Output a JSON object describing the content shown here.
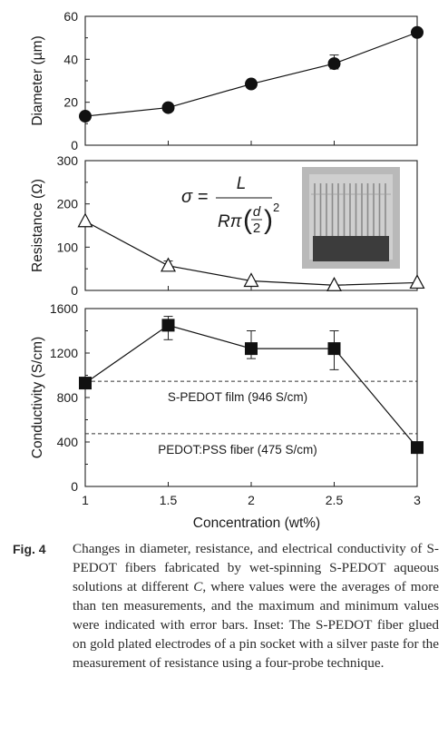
{
  "chart_data": [
    {
      "type": "line",
      "panel": "diameter",
      "ylabel": "Diameter (µm)",
      "ylim": [
        0,
        60
      ],
      "yticks": [
        0,
        20,
        40,
        60
      ],
      "x": [
        1,
        1.5,
        2,
        2.5,
        3
      ],
      "xlim": [
        1,
        3
      ],
      "series": [
        {
          "values": [
            13.5,
            17.5,
            28.5,
            38.0,
            52.5
          ],
          "error_upper": [
            null,
            null,
            null,
            42.0,
            null
          ],
          "error_lower": [
            null,
            null,
            null,
            35.5,
            null
          ],
          "marker": "circle",
          "color": "#111111"
        }
      ]
    },
    {
      "type": "line",
      "panel": "resistance",
      "ylabel": "Resistance (Ω)",
      "ylim": [
        0,
        300
      ],
      "yticks": [
        0,
        100,
        200,
        300
      ],
      "x": [
        1,
        1.5,
        2,
        2.5,
        3
      ],
      "xlim": [
        1,
        3
      ],
      "series": [
        {
          "values": [
            160,
            57,
            22,
            12,
            18
          ],
          "error_upper": [
            null,
            68,
            null,
            null,
            null
          ],
          "error_lower": [
            null,
            45,
            null,
            null,
            null
          ],
          "marker": "triangle-open",
          "color": "#111111"
        }
      ],
      "annotation_formula": {
        "lhs": "σ =",
        "numerator": "L",
        "denominator_prefix": "Rπ",
        "inner_num": "d",
        "inner_den": "2",
        "exponent": "2"
      },
      "inset": "photo of fiber on pin socket electrodes"
    },
    {
      "type": "line",
      "panel": "conductivity",
      "ylabel": "Conductivity (S/cm)",
      "xlabel": "Concentration (wt%)",
      "ylim": [
        0,
        1600
      ],
      "yticks": [
        0,
        400,
        800,
        1200,
        1600
      ],
      "x": [
        1,
        1.5,
        2,
        2.5,
        3
      ],
      "xticks": [
        "1",
        "1.5",
        "2",
        "2.5",
        "3"
      ],
      "xlim": [
        1,
        3
      ],
      "series": [
        {
          "values": [
            930,
            1450,
            1240,
            1240,
            350
          ],
          "error_upper": [
            null,
            1530,
            1400,
            1400,
            null
          ],
          "error_lower": [
            null,
            1320,
            1150,
            1050,
            null
          ],
          "marker": "square",
          "color": "#111111"
        }
      ],
      "reference_lines": [
        {
          "value": 946,
          "label": "S-PEDOT film (946 S/cm)"
        },
        {
          "value": 475,
          "label": "PEDOT:PSS fiber (475 S/cm)"
        }
      ]
    }
  ],
  "caption": {
    "label": "Fig. 4",
    "text_before_italic": "Changes in diameter, resistance, and electrical conductivity of S-PEDOT fibers fabricated by wet-spinning S-PEDOT aqueous solutions at different ",
    "italic": "C",
    "text_after_italic": ", where values were the averages of more than ten measurements, and the maximum and minimum values were indicated with error bars. Inset: The S-PEDOT fiber glued on gold plated electrodes of a pin socket with a silver paste for the measurement of resistance using a four-probe technique."
  }
}
